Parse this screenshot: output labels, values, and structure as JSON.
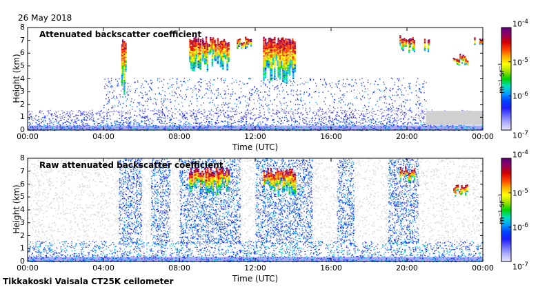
{
  "date": "26 May 2018",
  "footer": "Tikkakoski Vaisala CT25K ceilometer",
  "colors": {
    "background_gray": "#d8d8d8",
    "low": "#5050ff",
    "colormap": [
      "#e6e6ff",
      "#b0b0ff",
      "#6a6aff",
      "#1e1eff",
      "#0040ff",
      "#00a0ff",
      "#00e0c0",
      "#00d000",
      "#a0e000",
      "#ffff00",
      "#ffb000",
      "#ff4000",
      "#d00000",
      "#900060",
      "#600080"
    ]
  },
  "chart_data": [
    {
      "type": "heatmap",
      "title": "Attenuated backscatter coefficient",
      "xlabel": "Time (UTC)",
      "ylabel": "Height (km)",
      "xlim": [
        0,
        24
      ],
      "ylim": [
        0,
        8
      ],
      "x_ticks": [
        "00:00",
        "04:00",
        "08:00",
        "12:00",
        "16:00",
        "20:00",
        "00:00"
      ],
      "y_ticks": [
        "0",
        "1",
        "2",
        "3",
        "4",
        "5",
        "6",
        "7",
        "8"
      ],
      "colorbar": {
        "scale": "log",
        "range": [
          1e-07,
          0.0001
        ],
        "ticks": [
          {
            "mantissa": "10",
            "exp": "-7"
          },
          {
            "mantissa": "10",
            "exp": "-6"
          },
          {
            "mantissa": "10",
            "exp": "-5"
          },
          {
            "mantissa": "10",
            "exp": "-4"
          }
        ],
        "unit": "m⁻¹ sr⁻¹"
      },
      "features": [
        {
          "name": "boundary layer",
          "x_range": [
            0,
            24
          ],
          "top_km": 1.6
        },
        {
          "name": "cloud",
          "x_range": [
            4.9,
            5.2
          ],
          "y_range": [
            2.5,
            7.2
          ]
        },
        {
          "name": "cloud",
          "x_range": [
            8.5,
            10.6
          ],
          "y_range": [
            4.5,
            7.3
          ]
        },
        {
          "name": "cloud",
          "x_range": [
            11.0,
            11.8
          ],
          "y_range": [
            6.2,
            7.3
          ]
        },
        {
          "name": "cloud",
          "x_range": [
            12.4,
            14.1
          ],
          "y_range": [
            3.5,
            7.3
          ]
        },
        {
          "name": "cloud",
          "x_range": [
            19.6,
            20.4
          ],
          "y_range": [
            6.0,
            7.4
          ]
        },
        {
          "name": "cloud",
          "x_range": [
            20.9,
            21.2
          ],
          "y_range": [
            6.0,
            7.2
          ]
        },
        {
          "name": "cloud",
          "x_range": [
            22.4,
            23.2
          ],
          "y_range": [
            5.0,
            6.0
          ]
        },
        {
          "name": "cloud",
          "x_range": [
            23.5,
            24.0
          ],
          "y_range": [
            6.5,
            7.4
          ]
        }
      ]
    },
    {
      "type": "heatmap",
      "title": "Raw attenuated backscatter coefficient",
      "xlabel": "Time (UTC)",
      "ylabel": "Height (km)",
      "xlim": [
        0,
        24
      ],
      "ylim": [
        0,
        8
      ],
      "x_ticks": [
        "00:00",
        "04:00",
        "08:00",
        "12:00",
        "16:00",
        "20:00",
        "00:00"
      ],
      "y_ticks": [
        "0",
        "1",
        "2",
        "3",
        "4",
        "5",
        "6",
        "7",
        "8"
      ],
      "colorbar": {
        "scale": "log",
        "range": [
          1e-07,
          0.0001
        ],
        "ticks": [
          {
            "mantissa": "10",
            "exp": "-7"
          },
          {
            "mantissa": "10",
            "exp": "-6"
          },
          {
            "mantissa": "10",
            "exp": "-5"
          },
          {
            "mantissa": "10",
            "exp": "-4"
          }
        ],
        "unit": "m⁻¹ sr⁻¹"
      },
      "features": [
        {
          "name": "noise",
          "x_range": [
            0,
            24
          ],
          "y_range": [
            0,
            8
          ]
        },
        {
          "name": "noise band",
          "x_range": [
            4.8,
            6.0
          ],
          "y_range": [
            0,
            8
          ]
        },
        {
          "name": "noise band",
          "x_range": [
            6.5,
            7.5
          ],
          "y_range": [
            0,
            8
          ]
        },
        {
          "name": "noise band",
          "x_range": [
            8.0,
            11.2
          ],
          "y_range": [
            0,
            8
          ]
        },
        {
          "name": "noise band",
          "x_range": [
            12.0,
            15.0
          ],
          "y_range": [
            0,
            8
          ]
        },
        {
          "name": "noise band",
          "x_range": [
            16.3,
            17.2
          ],
          "y_range": [
            0,
            8
          ]
        },
        {
          "name": "noise band",
          "x_range": [
            19.0,
            20.6
          ],
          "y_range": [
            0,
            8
          ]
        },
        {
          "name": "cloud",
          "x_range": [
            8.5,
            10.6
          ],
          "y_range": [
            5.0,
            7.3
          ]
        },
        {
          "name": "cloud",
          "x_range": [
            12.4,
            14.1
          ],
          "y_range": [
            5.0,
            7.3
          ]
        },
        {
          "name": "cloud",
          "x_range": [
            19.6,
            20.4
          ],
          "y_range": [
            6.0,
            7.4
          ]
        },
        {
          "name": "cloud",
          "x_range": [
            22.4,
            23.2
          ],
          "y_range": [
            5.0,
            6.0
          ]
        }
      ]
    }
  ]
}
